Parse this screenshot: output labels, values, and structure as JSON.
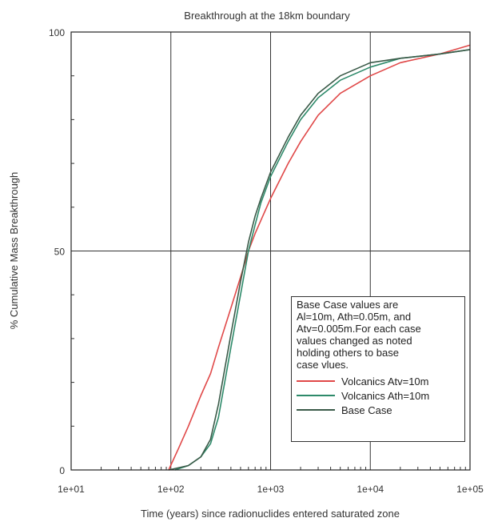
{
  "chart_data": {
    "type": "line",
    "title": "Breakthrough at the 18km boundary",
    "xlabel": "Time (years) since radionuclides entered saturated zone",
    "ylabel": "% Cumulative Mass Breakthrough",
    "x_scale": "log",
    "xlim": [
      10,
      100000
    ],
    "ylim": [
      0,
      100
    ],
    "x_ticks": [
      10,
      100,
      1000,
      10000,
      100000
    ],
    "x_tick_labels": [
      "1e+01",
      "1e+02",
      "1e+03",
      "1e+04",
      "1e+05"
    ],
    "y_ticks": [
      0,
      50,
      100
    ],
    "y_tick_labels": [
      "0",
      "50",
      "100"
    ],
    "grid": true,
    "legend_position": "lower-right",
    "legend_note": "Base Case values are\nAl=10m, Ath=0.05m, and\nAtv=0.005m.For each case\nvalues changed as noted\nholding others to base\ncase vlues.",
    "series": [
      {
        "name": "Volcanics Atv=10m",
        "color": "#e04848",
        "x": [
          95,
          120,
          150,
          200,
          250,
          300,
          400,
          500,
          600,
          700,
          800,
          1000,
          1500,
          2000,
          3000,
          5000,
          10000,
          20000,
          50000,
          100000
        ],
        "y": [
          0,
          5,
          10,
          17,
          22,
          28,
          37,
          44,
          50,
          54,
          57,
          62,
          70,
          75,
          81,
          86,
          90,
          93,
          95,
          97
        ]
      },
      {
        "name": "Volcanics Ath=10m",
        "color": "#2e8a6a",
        "x": [
          110,
          150,
          200,
          250,
          300,
          400,
          500,
          600,
          700,
          800,
          1000,
          1500,
          2000,
          3000,
          5000,
          10000,
          20000,
          50000,
          100000
        ],
        "y": [
          0,
          1,
          3,
          6,
          12,
          28,
          40,
          50,
          56,
          61,
          67,
          75,
          80,
          85,
          89,
          92,
          94,
          95,
          96
        ]
      },
      {
        "name": "Base Case",
        "color": "#3a5a48",
        "x": [
          95,
          150,
          200,
          250,
          300,
          400,
          500,
          600,
          700,
          800,
          1000,
          1500,
          2000,
          3000,
          5000,
          10000,
          20000,
          50000,
          100000
        ],
        "y": [
          0,
          1,
          3,
          7,
          15,
          31,
          43,
          52,
          58,
          62,
          68,
          76,
          81,
          86,
          90,
          93,
          94,
          95,
          96
        ]
      }
    ]
  }
}
